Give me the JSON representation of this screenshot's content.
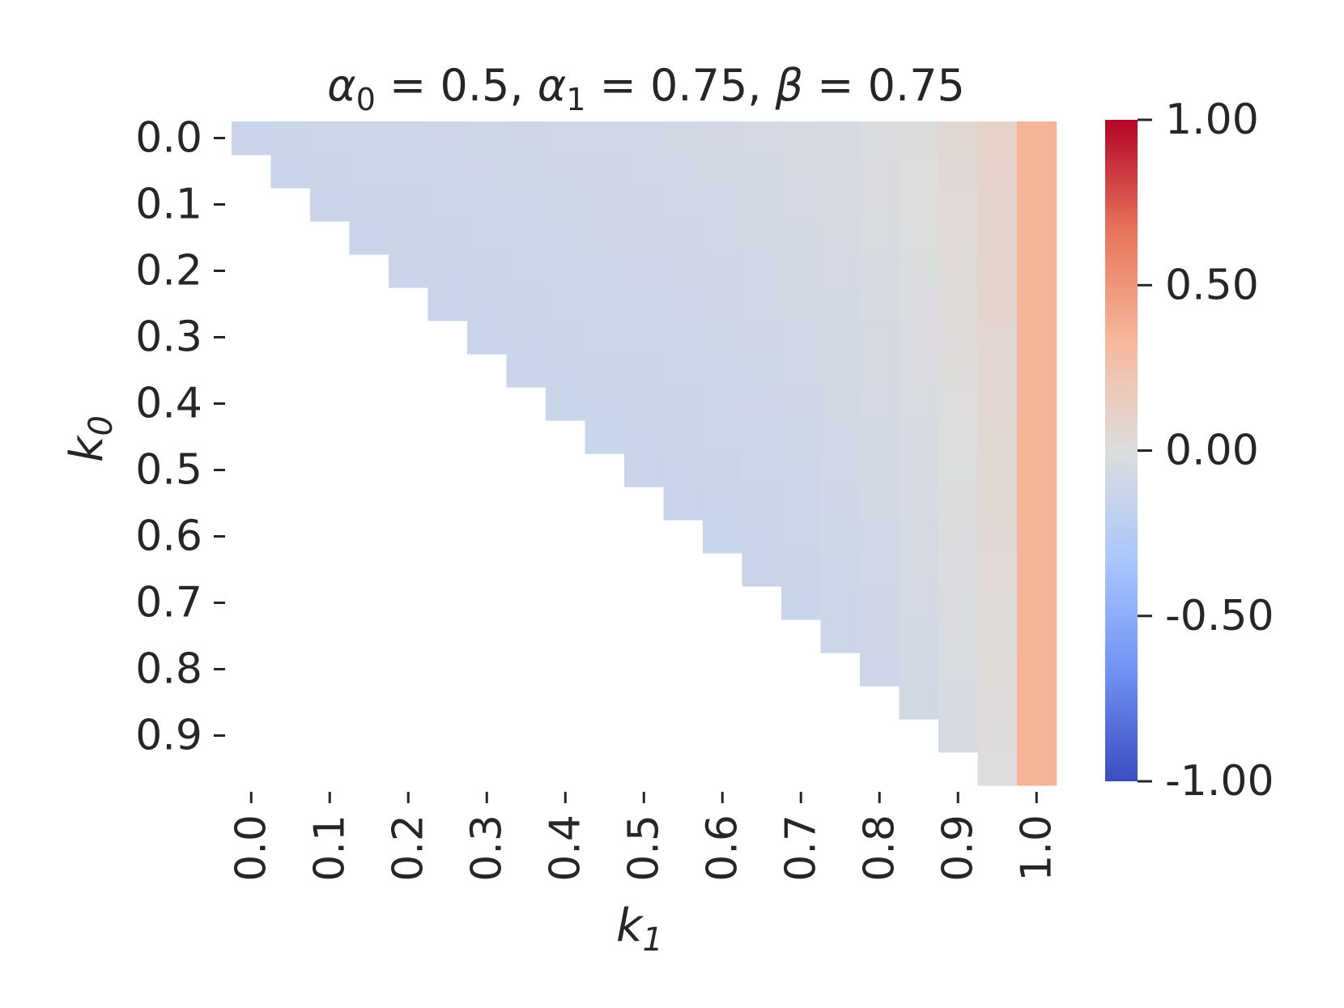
{
  "chart_data": {
    "type": "heatmap",
    "title_parts": [
      {
        "sym": "α",
        "sub": "0",
        "val": " = 0.5, "
      },
      {
        "sym": "α",
        "sub": "1",
        "val": " = 0.75, "
      },
      {
        "sym": "β",
        "sub": "",
        "val": " = 0.75"
      }
    ],
    "xlabel": {
      "sym": "k",
      "sub": "1"
    },
    "ylabel": {
      "sym": "k",
      "sub": "0"
    },
    "x_categories": [
      0.0,
      0.05,
      0.1,
      0.15,
      0.2,
      0.25,
      0.3,
      0.35,
      0.4,
      0.45,
      0.5,
      0.55,
      0.6,
      0.65,
      0.7,
      0.75,
      0.8,
      0.85,
      0.9,
      0.95,
      1.0
    ],
    "y_categories": [
      0.0,
      0.05,
      0.1,
      0.15,
      0.2,
      0.25,
      0.3,
      0.35,
      0.4,
      0.45,
      0.5,
      0.55,
      0.6,
      0.65,
      0.7,
      0.75,
      0.8,
      0.85,
      0.9,
      0.95
    ],
    "x_tick_labels": [
      "0.0",
      "0.1",
      "0.2",
      "0.3",
      "0.4",
      "0.5",
      "0.6",
      "0.7",
      "0.8",
      "0.9",
      "1.0"
    ],
    "y_tick_labels": [
      "0.0",
      "0.1",
      "0.2",
      "0.3",
      "0.4",
      "0.5",
      "0.6",
      "0.7",
      "0.8",
      "0.9"
    ],
    "mask": "cells with k1 < k0 are empty",
    "value_model_estimate": {
      "base": -0.12,
      "k1_coef": 0.08,
      "k0_coef": -0.1,
      "last_column": 0.35
    },
    "colorbar": {
      "min": -1.0,
      "max": 1.0,
      "ticks": [
        "1.00",
        "0.50",
        "0.00",
        "-0.50",
        "-1.00"
      ],
      "colormap": "coolwarm",
      "stops": [
        "#3b4cc0",
        "#7092f3",
        "#aac7fd",
        "#dddddd",
        "#f7b89c",
        "#e7745b",
        "#b40426"
      ]
    }
  }
}
